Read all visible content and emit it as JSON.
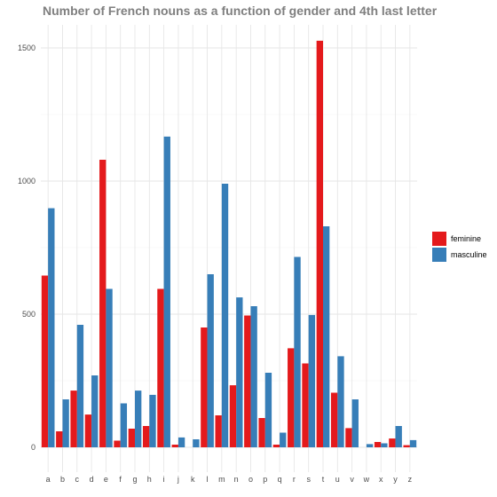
{
  "chart_data": {
    "type": "bar",
    "title": "Number of French nouns as a function of gender and 4th last letter",
    "xlabel": "",
    "ylabel": "",
    "categories": [
      "a",
      "b",
      "c",
      "d",
      "e",
      "f",
      "g",
      "h",
      "i",
      "j",
      "k",
      "l",
      "m",
      "n",
      "o",
      "p",
      "q",
      "r",
      "s",
      "t",
      "u",
      "v",
      "w",
      "x",
      "y",
      "z"
    ],
    "series": [
      {
        "name": "feminine",
        "color": "#e41a1c",
        "values": [
          645,
          60,
          213,
          123,
          1080,
          25,
          70,
          80,
          595,
          10,
          0,
          450,
          120,
          233,
          495,
          110,
          10,
          372,
          315,
          1527,
          205,
          72,
          0,
          20,
          33,
          8
        ]
      },
      {
        "name": "masculine",
        "color": "#377eb8",
        "values": [
          898,
          180,
          460,
          270,
          595,
          165,
          213,
          197,
          1167,
          37,
          30,
          650,
          990,
          563,
          530,
          280,
          55,
          715,
          497,
          830,
          342,
          180,
          12,
          15,
          80,
          27
        ]
      }
    ],
    "yticks": [
      0,
      500,
      1000,
      1500
    ],
    "ylim": [
      0,
      1530
    ],
    "grid": true,
    "legend_position": "right"
  }
}
